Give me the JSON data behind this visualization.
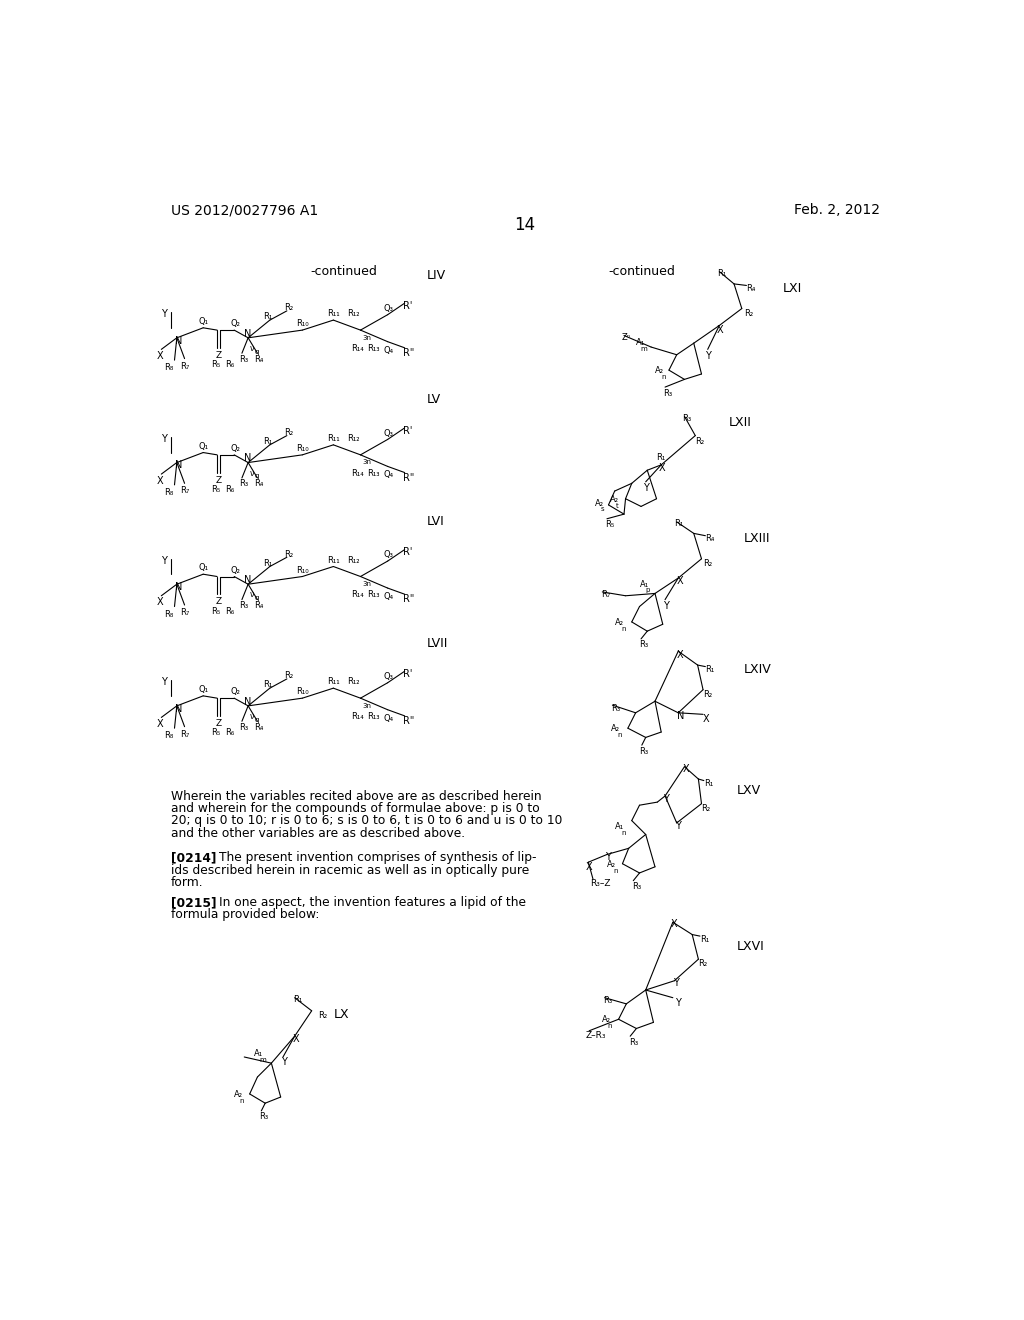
{
  "page_number": "14",
  "patent_number": "US 2012/0027796 A1",
  "patent_date": "Feb. 2, 2012",
  "background_color": "#ffffff",
  "text_color": "#000000",
  "continued_left": "-continued",
  "continued_right": "-continued",
  "wherein_text_lines": [
    "Wherein the variables recited above are as described herein",
    "and wherein for the compounds of formulae above: p is 0 to",
    "20; q is 0 to 10; r is 0 to 6; s is 0 to 6, t is 0 to 6 and u is 0 to 10",
    "and the other variables are as described above."
  ],
  "para_0214_lines": [
    "[0214]    The present invention comprises of synthesis of lip-",
    "ids described herein in racemic as well as in optically pure",
    "form."
  ],
  "para_0215_lines": [
    "[0215]    In one aspect, the invention features a lipid of the",
    "formula provided below:"
  ]
}
